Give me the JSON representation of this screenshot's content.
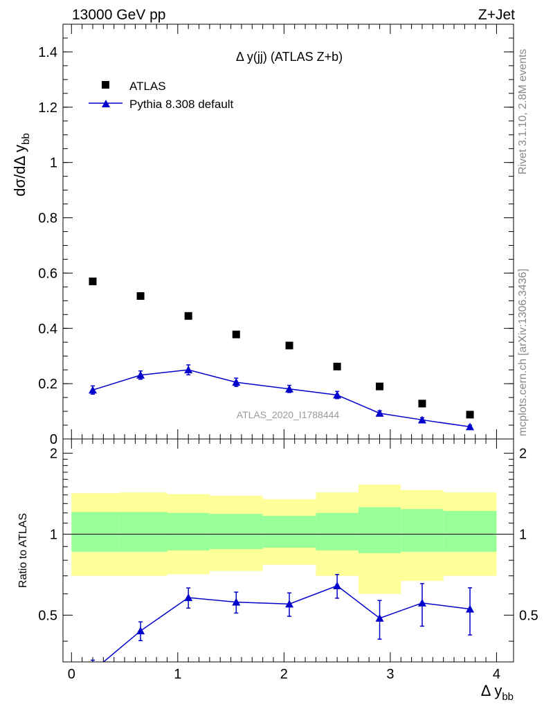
{
  "header": {
    "energy_label": "13000 GeV pp",
    "process_label": "Z+Jet"
  },
  "side": {
    "rivet_label": "Rivet 3.1.10,  2.8M events",
    "mcplots_label": "mcplots.cern.ch [arXiv:1306.3436]"
  },
  "main_plot": {
    "title": "Δ y(jj) (ATLAS Z+b)",
    "ylabel": "dσ/dΔ y_bb",
    "analysis_label": "ATLAS_2020_I1788444",
    "legend": {
      "data_label": "ATLAS",
      "mc_label": "Pythia 8.308 default"
    }
  },
  "ratio_plot": {
    "ylabel": "Ratio to ATLAS"
  },
  "xaxis": {
    "label": "Δ y_bb"
  },
  "colors": {
    "data": "#000000",
    "mc": "#0000cc",
    "band_inner": "#99ff99",
    "band_outer": "#ffff99"
  },
  "chart_data": [
    {
      "type": "scatter",
      "title": "Δ y(jj) (ATLAS Z+b)",
      "xlabel": "Δ y_bb",
      "ylabel": "dσ/dΔ y_bb",
      "xlim": [
        -0.08,
        4.16
      ],
      "ylim": [
        0,
        1.5
      ],
      "xticks": [
        0,
        1,
        2,
        3,
        4
      ],
      "yticks": [
        0,
        0.2,
        0.4,
        0.6,
        0.8,
        1,
        1.2,
        1.4
      ],
      "series": [
        {
          "name": "ATLAS",
          "marker": "square",
          "x": [
            0.2,
            0.65,
            1.1,
            1.55,
            2.05,
            2.5,
            2.9,
            3.3,
            3.75
          ],
          "y": [
            0.57,
            0.517,
            0.445,
            0.378,
            0.338,
            0.262,
            0.19,
            0.128,
            0.088
          ]
        },
        {
          "name": "Pythia 8.308 default",
          "marker": "triangle",
          "x": [
            0.2,
            0.65,
            1.1,
            1.55,
            2.05,
            2.5,
            2.9,
            3.3,
            3.75
          ],
          "y": [
            0.177,
            0.231,
            0.25,
            0.205,
            0.181,
            0.159,
            0.093,
            0.069,
            0.044
          ],
          "yerr": [
            0.015,
            0.015,
            0.018,
            0.015,
            0.013,
            0.013,
            0.009,
            0.008,
            0.006
          ]
        }
      ]
    },
    {
      "type": "scatter",
      "ylabel": "Ratio to ATLAS",
      "xlabel": "Δ y_bb",
      "xlim": [
        -0.08,
        4.16
      ],
      "ylim": [
        0.335,
        2.26
      ],
      "yticks": [
        0.5,
        1,
        2
      ],
      "reference_line": 1,
      "bands": {
        "edges": [
          0,
          0.45,
          0.9,
          1.3,
          1.8,
          2.3,
          2.7,
          3.1,
          3.5,
          4.0
        ],
        "inner_low": [
          0.86,
          0.86,
          0.87,
          0.88,
          0.89,
          0.87,
          0.85,
          0.86,
          0.86
        ],
        "inner_high": [
          1.21,
          1.21,
          1.2,
          1.19,
          1.17,
          1.2,
          1.26,
          1.24,
          1.22
        ],
        "outer_low": [
          0.7,
          0.7,
          0.71,
          0.73,
          0.77,
          0.7,
          0.6,
          0.67,
          0.7
        ],
        "outer_high": [
          1.42,
          1.43,
          1.41,
          1.39,
          1.35,
          1.43,
          1.53,
          1.46,
          1.43
        ]
      },
      "series": [
        {
          "name": "Pythia 8.308 default",
          "x": [
            0.2,
            0.65,
            1.1,
            1.55,
            2.05,
            2.5,
            2.9,
            3.3,
            3.75
          ],
          "y": [
            0.31,
            0.437,
            0.581,
            0.559,
            0.55,
            0.643,
            0.487,
            0.555,
            0.527
          ],
          "yerr": [
            0.03,
            0.035,
            0.05,
            0.05,
            0.055,
            0.065,
            0.08,
            0.1,
            0.105
          ]
        }
      ]
    }
  ]
}
